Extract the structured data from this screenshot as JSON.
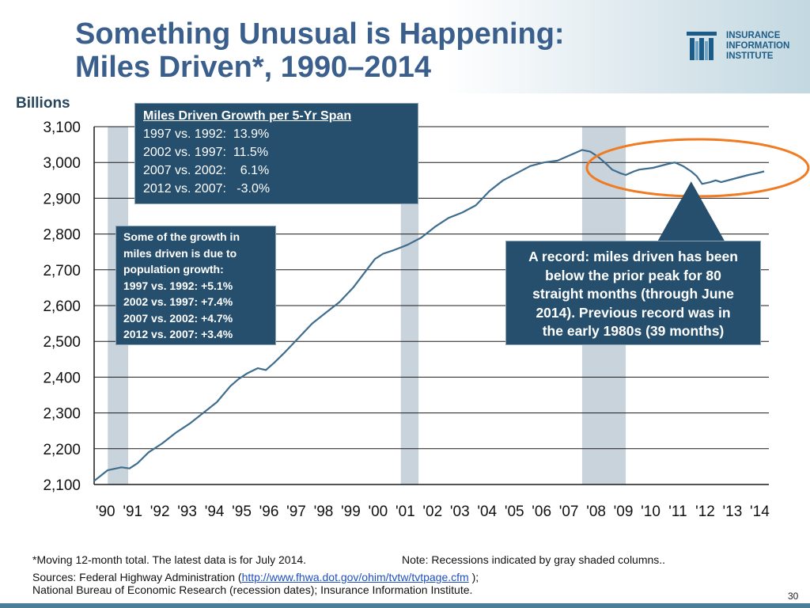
{
  "title": {
    "line1": "Something Unusual is Happening:",
    "line2": "Miles Driven*, 1990–2014"
  },
  "logo": {
    "line1": "INSURANCE",
    "line2": "INFORMATION",
    "line3": "INSTITUTE"
  },
  "y_unit_label": "Billions",
  "growth_box": {
    "heading": "Miles Driven Growth per 5-Yr Span",
    "lines": [
      "1997 vs. 1992:  13.9%",
      "2002 vs. 1997:  11.5%",
      "2007 vs. 2002:    6.1%",
      "2012 vs. 2007:   -3.0%"
    ]
  },
  "population_box": {
    "lines": [
      "Some of the growth in",
      "miles driven is due to",
      "population growth:",
      "1997 vs. 1992:  +5.1%",
      "2002 vs. 1997:  +7.4%",
      "2007 vs. 2002:  +4.7%",
      "2012 vs. 2007:  +3.4%"
    ]
  },
  "record_box": {
    "lines": [
      "A record: miles driven has been",
      "below the prior peak for 80",
      "straight months (through June",
      "2014). Previous record was in",
      "the early 1980s (39 months)"
    ]
  },
  "footer": {
    "note1": "*Moving 12-month total. The latest data is for July 2014.",
    "note2": "Note: Recessions indicated by gray shaded columns..",
    "sources_prefix": "Sources:  Federal Highway Administration (",
    "sources_link": "http://www.fhwa.dot.gov/ohim/tvtw/tvtpage.cfm",
    "sources_suffix": " );",
    "sources_line2": "National Bureau of Economic Research (recession dates); Insurance Information Institute."
  },
  "page_number": "30",
  "colors": {
    "title": "#3a5f8d",
    "line": "#3f6d8e",
    "box_fill": "#264f6d",
    "recession": "#c9d3dc",
    "highlight_ellipse": "#f07b22"
  },
  "chart_data": {
    "type": "line",
    "title": "Miles Driven*, 1990–2014",
    "xlabel": "",
    "ylabel": "Billions",
    "ylim": [
      2100,
      3100
    ],
    "yticks": [
      2100,
      2200,
      2300,
      2400,
      2500,
      2600,
      2700,
      2800,
      2900,
      3000,
      3100
    ],
    "ytick_labels": [
      "2,100",
      "2,200",
      "2,300",
      "2,400",
      "2,500",
      "2,600",
      "2,700",
      "2,800",
      "2,900",
      "3,000",
      "3,100"
    ],
    "xlim": [
      1990,
      2014.75
    ],
    "xtick_labels": [
      "'90",
      "'91",
      "'92",
      "'93",
      "'94",
      "'95",
      "'96",
      "'97",
      "'98",
      "'99",
      "'00",
      "'01",
      "'02",
      "'03",
      "'04",
      "'05",
      "'06",
      "'07",
      "'08",
      "'09",
      "'10",
      "'11",
      "'12",
      "'13",
      "'14"
    ],
    "recessions": [
      [
        1990.5,
        1991.25
      ],
      [
        2001.25,
        2001.9
      ],
      [
        2007.9,
        2009.5
      ]
    ],
    "series": [
      {
        "name": "Miles Driven (moving 12-month total, billions)",
        "x": [
          1990.0,
          1990.5,
          1991.0,
          1991.3,
          1991.6,
          1992.0,
          1992.5,
          1993.0,
          1993.5,
          1994.0,
          1994.5,
          1995.0,
          1995.3,
          1995.6,
          1996.0,
          1996.3,
          1996.6,
          1997.0,
          1997.5,
          1998.0,
          1998.5,
          1999.0,
          1999.5,
          2000.0,
          2000.3,
          2000.6,
          2001.0,
          2001.5,
          2002.0,
          2002.5,
          2003.0,
          2003.5,
          2004.0,
          2004.5,
          2005.0,
          2005.5,
          2006.0,
          2006.5,
          2007.0,
          2007.3,
          2007.6,
          2007.9,
          2008.2,
          2008.5,
          2008.8,
          2009.0,
          2009.3,
          2009.5,
          2009.8,
          2010.0,
          2010.5,
          2011.0,
          2011.3,
          2011.6,
          2011.9,
          2012.1,
          2012.3,
          2012.6,
          2012.8,
          2013.0,
          2013.5,
          2014.0,
          2014.3,
          2014.58
        ],
        "values": [
          2110,
          2140,
          2148,
          2145,
          2160,
          2190,
          2215,
          2245,
          2270,
          2300,
          2330,
          2375,
          2395,
          2410,
          2425,
          2420,
          2440,
          2470,
          2510,
          2550,
          2580,
          2610,
          2650,
          2700,
          2730,
          2745,
          2755,
          2770,
          2790,
          2820,
          2845,
          2860,
          2880,
          2920,
          2950,
          2970,
          2990,
          3000,
          3005,
          3015,
          3025,
          3035,
          3030,
          3015,
          2995,
          2980,
          2970,
          2965,
          2975,
          2980,
          2985,
          2995,
          3000,
          2990,
          2975,
          2962,
          2940,
          2945,
          2950,
          2945,
          2955,
          2965,
          2970,
          2975
        ]
      }
    ],
    "annotations": [
      "A record: miles driven has been below the prior peak for 80 straight months (through June 2014). Previous record was in the early 1980s (39 months)"
    ]
  }
}
